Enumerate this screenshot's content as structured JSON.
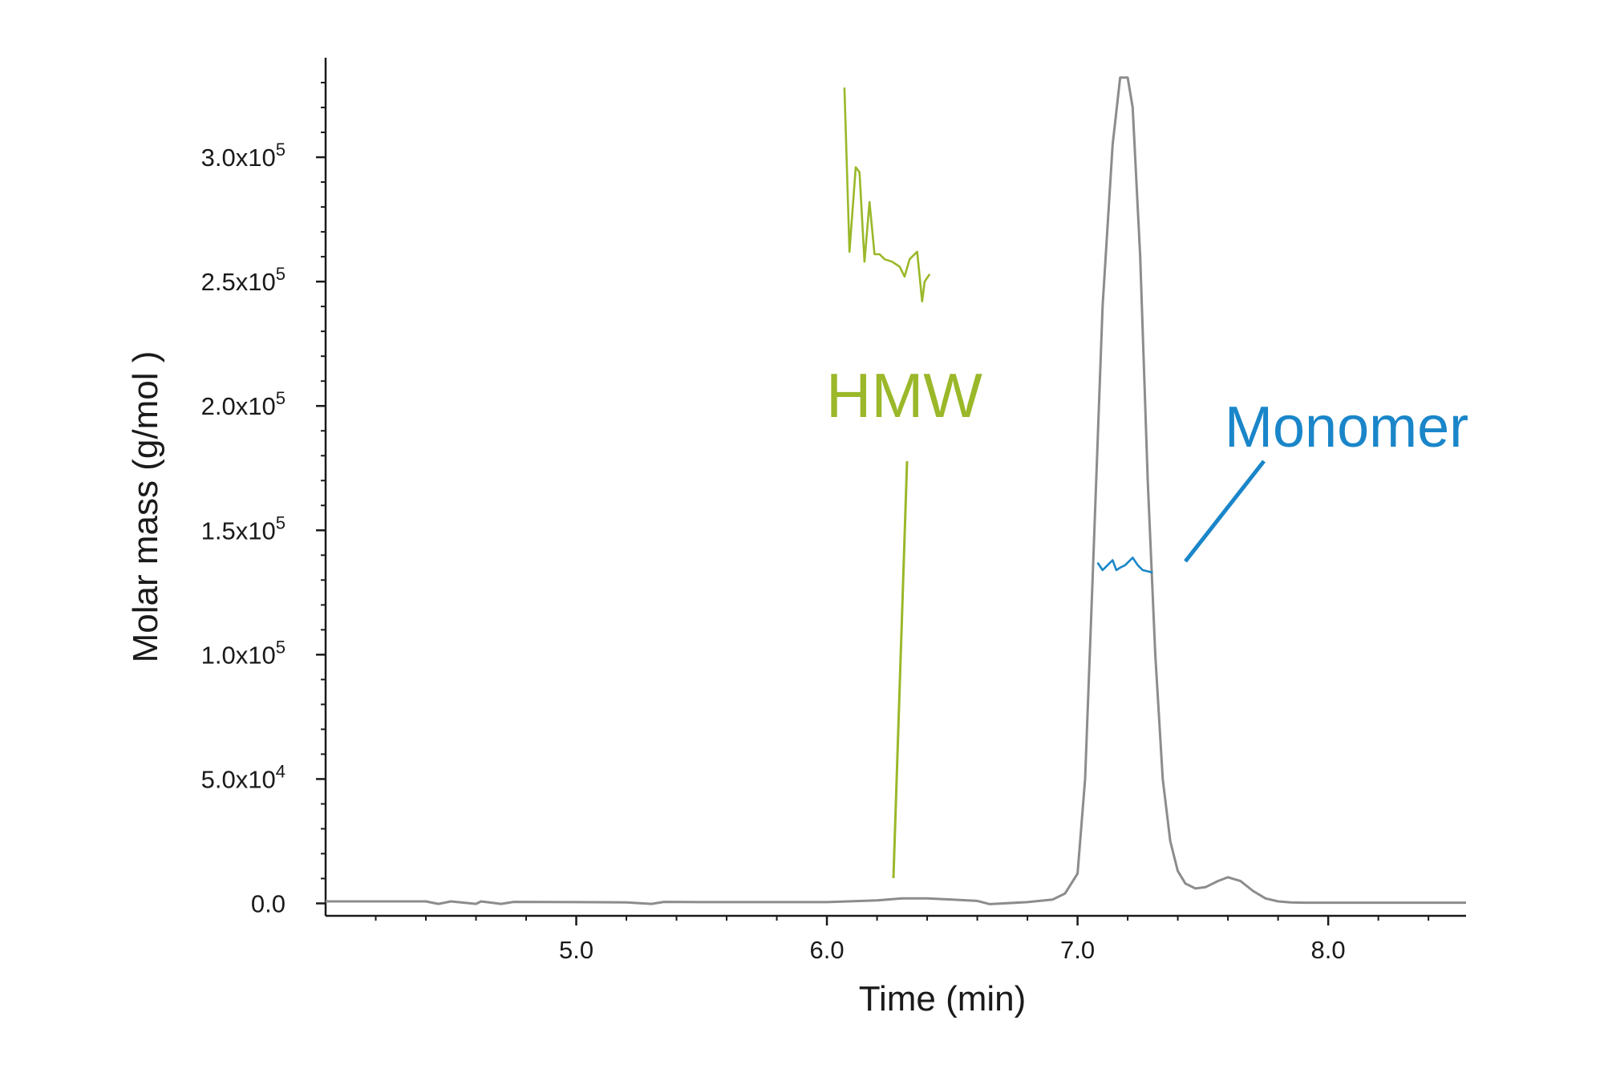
{
  "chart_data": {
    "type": "line",
    "xlabel": "Time (min)",
    "ylabel": "Molar mass (g/mol )",
    "xlim": [
      4.0,
      8.55
    ],
    "ylim": [
      -5000,
      340000
    ],
    "x_ticks": [
      {
        "value": 5.0,
        "label": "5.0"
      },
      {
        "value": 6.0,
        "label": "6.0"
      },
      {
        "value": 7.0,
        "label": "7.0"
      },
      {
        "value": 8.0,
        "label": "8.0"
      }
    ],
    "y_ticks": [
      {
        "value": 0,
        "mantissa": "0.0",
        "exponent": ""
      },
      {
        "value": 50000,
        "mantissa": "5.0x10",
        "exponent": "4"
      },
      {
        "value": 100000,
        "mantissa": "1.0x10",
        "exponent": "5"
      },
      {
        "value": 150000,
        "mantissa": "1.5x10",
        "exponent": "5"
      },
      {
        "value": 200000,
        "mantissa": "2.0x10",
        "exponent": "5"
      },
      {
        "value": 250000,
        "mantissa": "2.5x10",
        "exponent": "5"
      },
      {
        "value": 300000,
        "mantissa": "3.0x10",
        "exponent": "5"
      }
    ],
    "grid": false,
    "series": [
      {
        "name": "",
        "color": "#8c8c8c",
        "x": [
          4.0,
          4.4,
          4.45,
          4.5,
          4.6,
          4.62,
          4.7,
          4.75,
          5.0,
          5.2,
          5.3,
          5.35,
          5.5,
          6.0,
          6.2,
          6.3,
          6.4,
          6.5,
          6.6,
          6.65,
          6.8,
          6.9,
          6.95,
          7.0,
          7.03,
          7.06,
          7.1,
          7.14,
          7.17,
          7.2,
          7.22,
          7.25,
          7.28,
          7.31,
          7.34,
          7.37,
          7.4,
          7.43,
          7.47,
          7.51,
          7.56,
          7.6,
          7.65,
          7.7,
          7.75,
          7.8,
          7.85,
          7.9,
          8.0,
          8.2,
          8.55
        ],
        "y": [
          800,
          800,
          -200,
          800,
          -200,
          800,
          -200,
          600,
          500,
          400,
          -200,
          600,
          500,
          500,
          1200,
          2000,
          2000,
          1500,
          1000,
          -300,
          500,
          1500,
          4000,
          12000,
          50000,
          130000,
          240000,
          305000,
          332000,
          332000,
          320000,
          260000,
          170000,
          100000,
          50000,
          25000,
          13000,
          8000,
          6000,
          6500,
          9000,
          10500,
          9000,
          5000,
          2000,
          800,
          400,
          300,
          300,
          300,
          300
        ]
      },
      {
        "name": "HMW",
        "color": "#9ab829",
        "x": [
          6.07,
          6.09,
          6.115,
          6.13,
          6.15,
          6.17,
          6.19,
          6.21,
          6.23,
          6.26,
          6.29,
          6.31,
          6.33,
          6.36,
          6.38,
          6.39,
          6.41
        ],
        "y": [
          328000,
          262000,
          296000,
          294000,
          258000,
          282000,
          261000,
          261000,
          259000,
          258000,
          256000,
          252000,
          259000,
          262000,
          242000,
          250000,
          253000
        ]
      },
      {
        "name": "Monomer",
        "color": "#1a86c9",
        "x": [
          7.08,
          7.1,
          7.12,
          7.14,
          7.155,
          7.17,
          7.19,
          7.22,
          7.24,
          7.26,
          7.3
        ],
        "y": [
          137000,
          134000,
          136000,
          138000,
          134000,
          135000,
          136000,
          139000,
          136000,
          134000,
          133000
        ]
      }
    ],
    "annotations": [
      {
        "text": "HMW",
        "color": "#9ab829"
      },
      {
        "text": "Monomer",
        "color": "#1a86c9"
      }
    ]
  }
}
